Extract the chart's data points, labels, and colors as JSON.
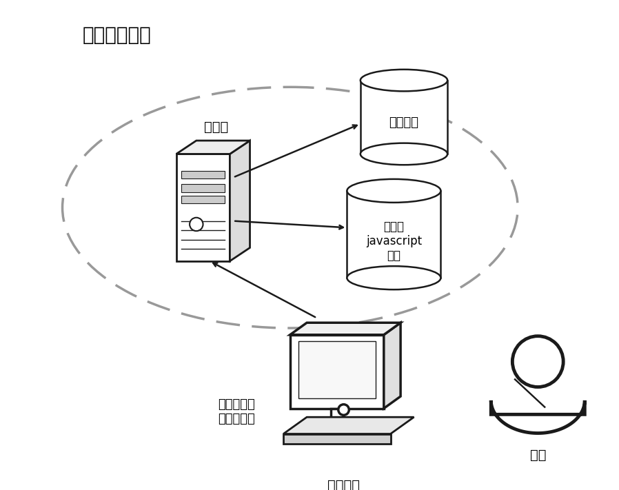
{
  "title": "数据处理平台",
  "server_label": "服务器",
  "db1_label": "业务文件",
  "db2_label": "预设的\njavascript\n脚本",
  "terminal_label": "终端设备",
  "client_label": "预设的文件\n处理客户端",
  "user_label": "用户",
  "bg_color": "#ffffff",
  "line_color": "#1a1a1a",
  "cloud_color": "#999999",
  "font_size_title": 20,
  "font_size_label": 14,
  "font_size_db": 13
}
